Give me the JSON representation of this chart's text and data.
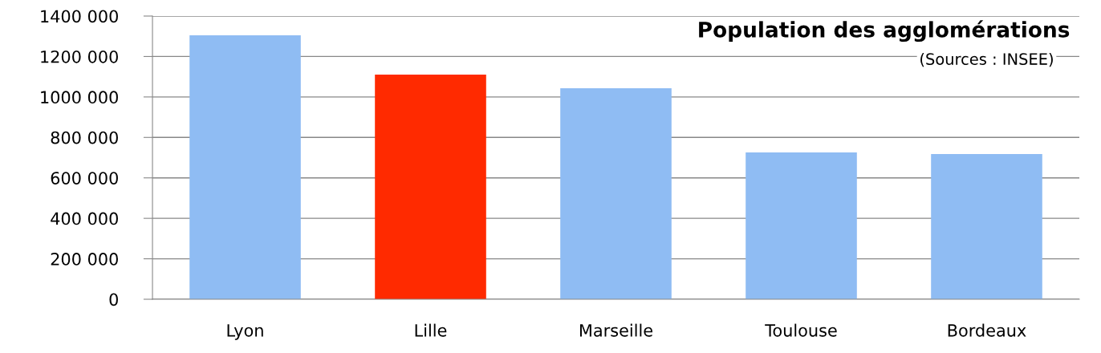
{
  "chart_data": {
    "type": "bar",
    "title": "Population des agglomérations",
    "subtitle": "(Sources : INSEE)",
    "categories": [
      "Lyon",
      "Lille",
      "Marseille",
      "Toulouse",
      "Bordeaux"
    ],
    "values": [
      1305000,
      1110000,
      1043000,
      726000,
      718000
    ],
    "colors": [
      "#8fbcf3",
      "#ff2a00",
      "#8fbcf3",
      "#8fbcf3",
      "#8fbcf3"
    ],
    "ylim": [
      0,
      1400000
    ],
    "yticks": [
      0,
      {
        "value": 200000,
        "label": "200 000"
      },
      {
        "value": 400000,
        "label": "400 000"
      },
      {
        "value": 600000,
        "label": "600 000"
      },
      {
        "value": 800000,
        "label": "800 000"
      },
      {
        "value": 1000000,
        "label": "1000 000"
      },
      {
        "value": 1200000,
        "label": "1200 000"
      },
      {
        "value": 1400000,
        "label": "1400 000"
      }
    ],
    "grid": "y",
    "legend": false
  }
}
